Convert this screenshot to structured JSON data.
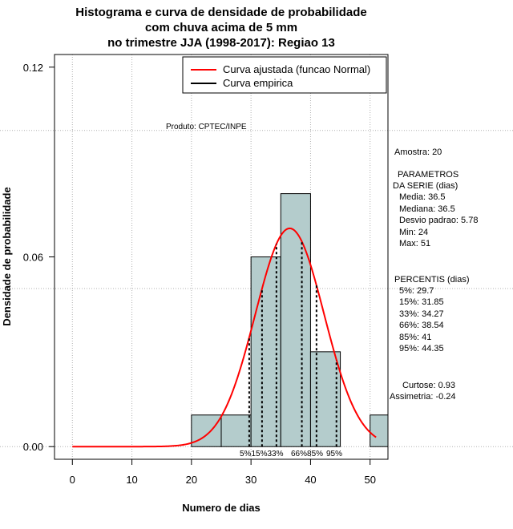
{
  "chart_data": {
    "type": "bar",
    "title_lines": [
      "Histograma e curva de densidade de probabilidade",
      "com chuva acima de 5 mm",
      "no trimestre JJA (1998-2017): Regiao 13"
    ],
    "xlabel": "Numero de dias",
    "ylabel": "Densidade de probabilidade",
    "xlim": [
      -3,
      53
    ],
    "ylim": [
      -0.004,
      0.124
    ],
    "x_ticks": [
      0,
      10,
      20,
      30,
      40,
      50
    ],
    "x_tick_labels": [
      "0",
      "10",
      "20",
      "30",
      "40",
      "50"
    ],
    "y_ticks": [
      0.0,
      0.06,
      0.12
    ],
    "y_tick_labels": [
      "0.00",
      "0.06",
      "0.12"
    ],
    "x_grid": [
      0,
      10,
      20,
      30,
      40,
      50
    ],
    "y_grid": [
      0.0,
      0.05,
      0.1
    ],
    "grid": true,
    "bars": [
      {
        "x0": 20,
        "x1": 25,
        "value": 0.01
      },
      {
        "x0": 25,
        "x1": 30,
        "value": 0.01
      },
      {
        "x0": 30,
        "x1": 35,
        "value": 0.06
      },
      {
        "x0": 35,
        "x1": 40,
        "value": 0.08
      },
      {
        "x0": 40,
        "x1": 45,
        "value": 0.03
      },
      {
        "x0": 45,
        "x1": 50,
        "value": 0.0
      },
      {
        "x0": 50,
        "x1": 55,
        "value": 0.01
      }
    ],
    "bar_color": "#b4cccc",
    "fitted_curve": {
      "name": "Curva ajustada (funcao Normal)",
      "mean": 36.5,
      "sd": 5.78,
      "x_from": 0,
      "x_to": 51,
      "color": "#ff0000"
    },
    "empirical_curve": {
      "name": "Curva empirica",
      "color": "#000000"
    },
    "percentile_lines": [
      {
        "label": "5%",
        "x": 29.7
      },
      {
        "label": "15%",
        "x": 31.85
      },
      {
        "label": "33%",
        "x": 34.27
      },
      {
        "label": "66%",
        "x": 38.54
      },
      {
        "label": "85%",
        "x": 41
      },
      {
        "label": "95%",
        "x": 44.35
      }
    ],
    "percentile_tags": [
      "5%15%33%",
      "66%85%",
      "95%"
    ],
    "legend_position": "top-right",
    "annotations": {
      "produto": "Produto: CPTEC/INPE",
      "amostra": "Amostra: 20",
      "parametros_title_1": "PARAMETROS",
      "parametros_title_2": "DA SERIE (dias)",
      "media": "Media: 36.5",
      "mediana": "Mediana: 36.5",
      "desvio": "Desvio padrao: 5.78",
      "min": "Min: 24",
      "max": "Max: 51",
      "percentis_title": "PERCENTIS (dias)",
      "p5": "5%: 29.7",
      "p15": "15%: 31.85",
      "p33": "33%: 34.27",
      "p66": "66%: 38.54",
      "p85": "85%: 41",
      "p95": "95%: 44.35",
      "curtose": "Curtose: 0.93",
      "assimetria": "Assimetria: -0.24"
    }
  }
}
